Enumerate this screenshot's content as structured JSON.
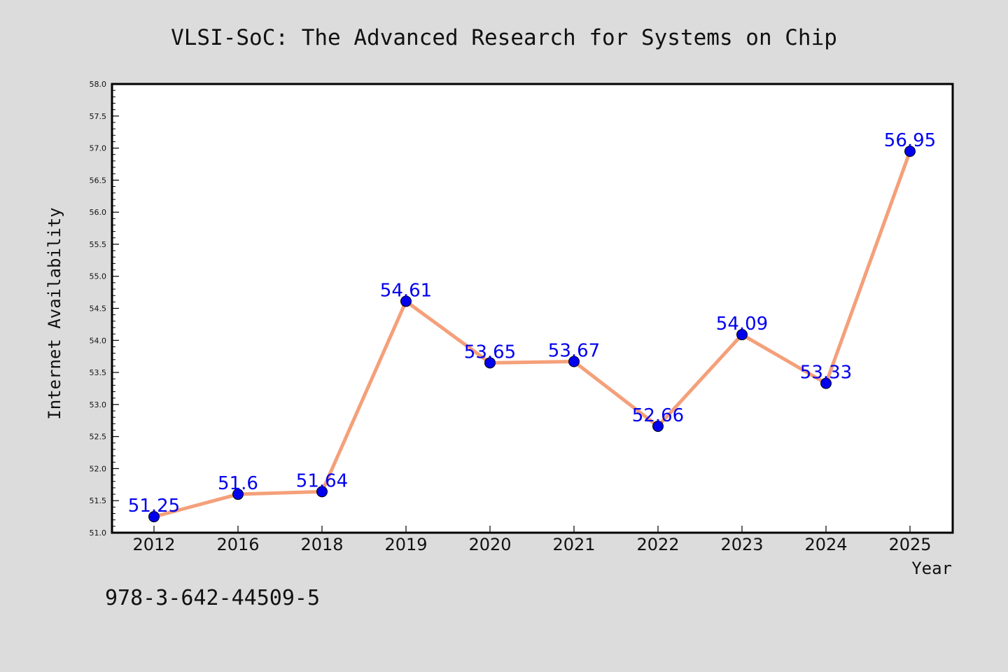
{
  "chart_data": {
    "type": "line",
    "title": "VLSI-SoC: The Advanced Research for Systems on Chip",
    "xlabel": "Year",
    "ylabel": "Internet Availability",
    "annotation": "978-3-642-44509-5",
    "categories": [
      "2012",
      "2016",
      "2018",
      "2019",
      "2020",
      "2021",
      "2022",
      "2023",
      "2024",
      "2025"
    ],
    "series": [
      {
        "values": [
          51.25,
          51.6,
          51.64,
          54.61,
          53.65,
          53.67,
          52.66,
          54.09,
          53.33,
          56.95
        ],
        "data_labels": [
          "51.25",
          "51.6",
          "51.64",
          "54.61",
          "53.65",
          "53.67",
          "52.66",
          "54.09",
          "53.33",
          "56.95"
        ]
      }
    ],
    "ylim": [
      51.0,
      58.0
    ],
    "yticks": [
      "51.0",
      "51.5",
      "52.0",
      "52.5",
      "53.0",
      "53.5",
      "54.0",
      "54.5",
      "55.0",
      "55.5",
      "56.0",
      "56.5",
      "57.0",
      "57.5",
      "58.0"
    ],
    "grid": false,
    "legend": "none",
    "colors": {
      "line": "#f4a07a",
      "marker": "#0000ee",
      "label": "#0000ee",
      "background": "#dcdcdc",
      "plot_background": "#ffffff"
    }
  }
}
